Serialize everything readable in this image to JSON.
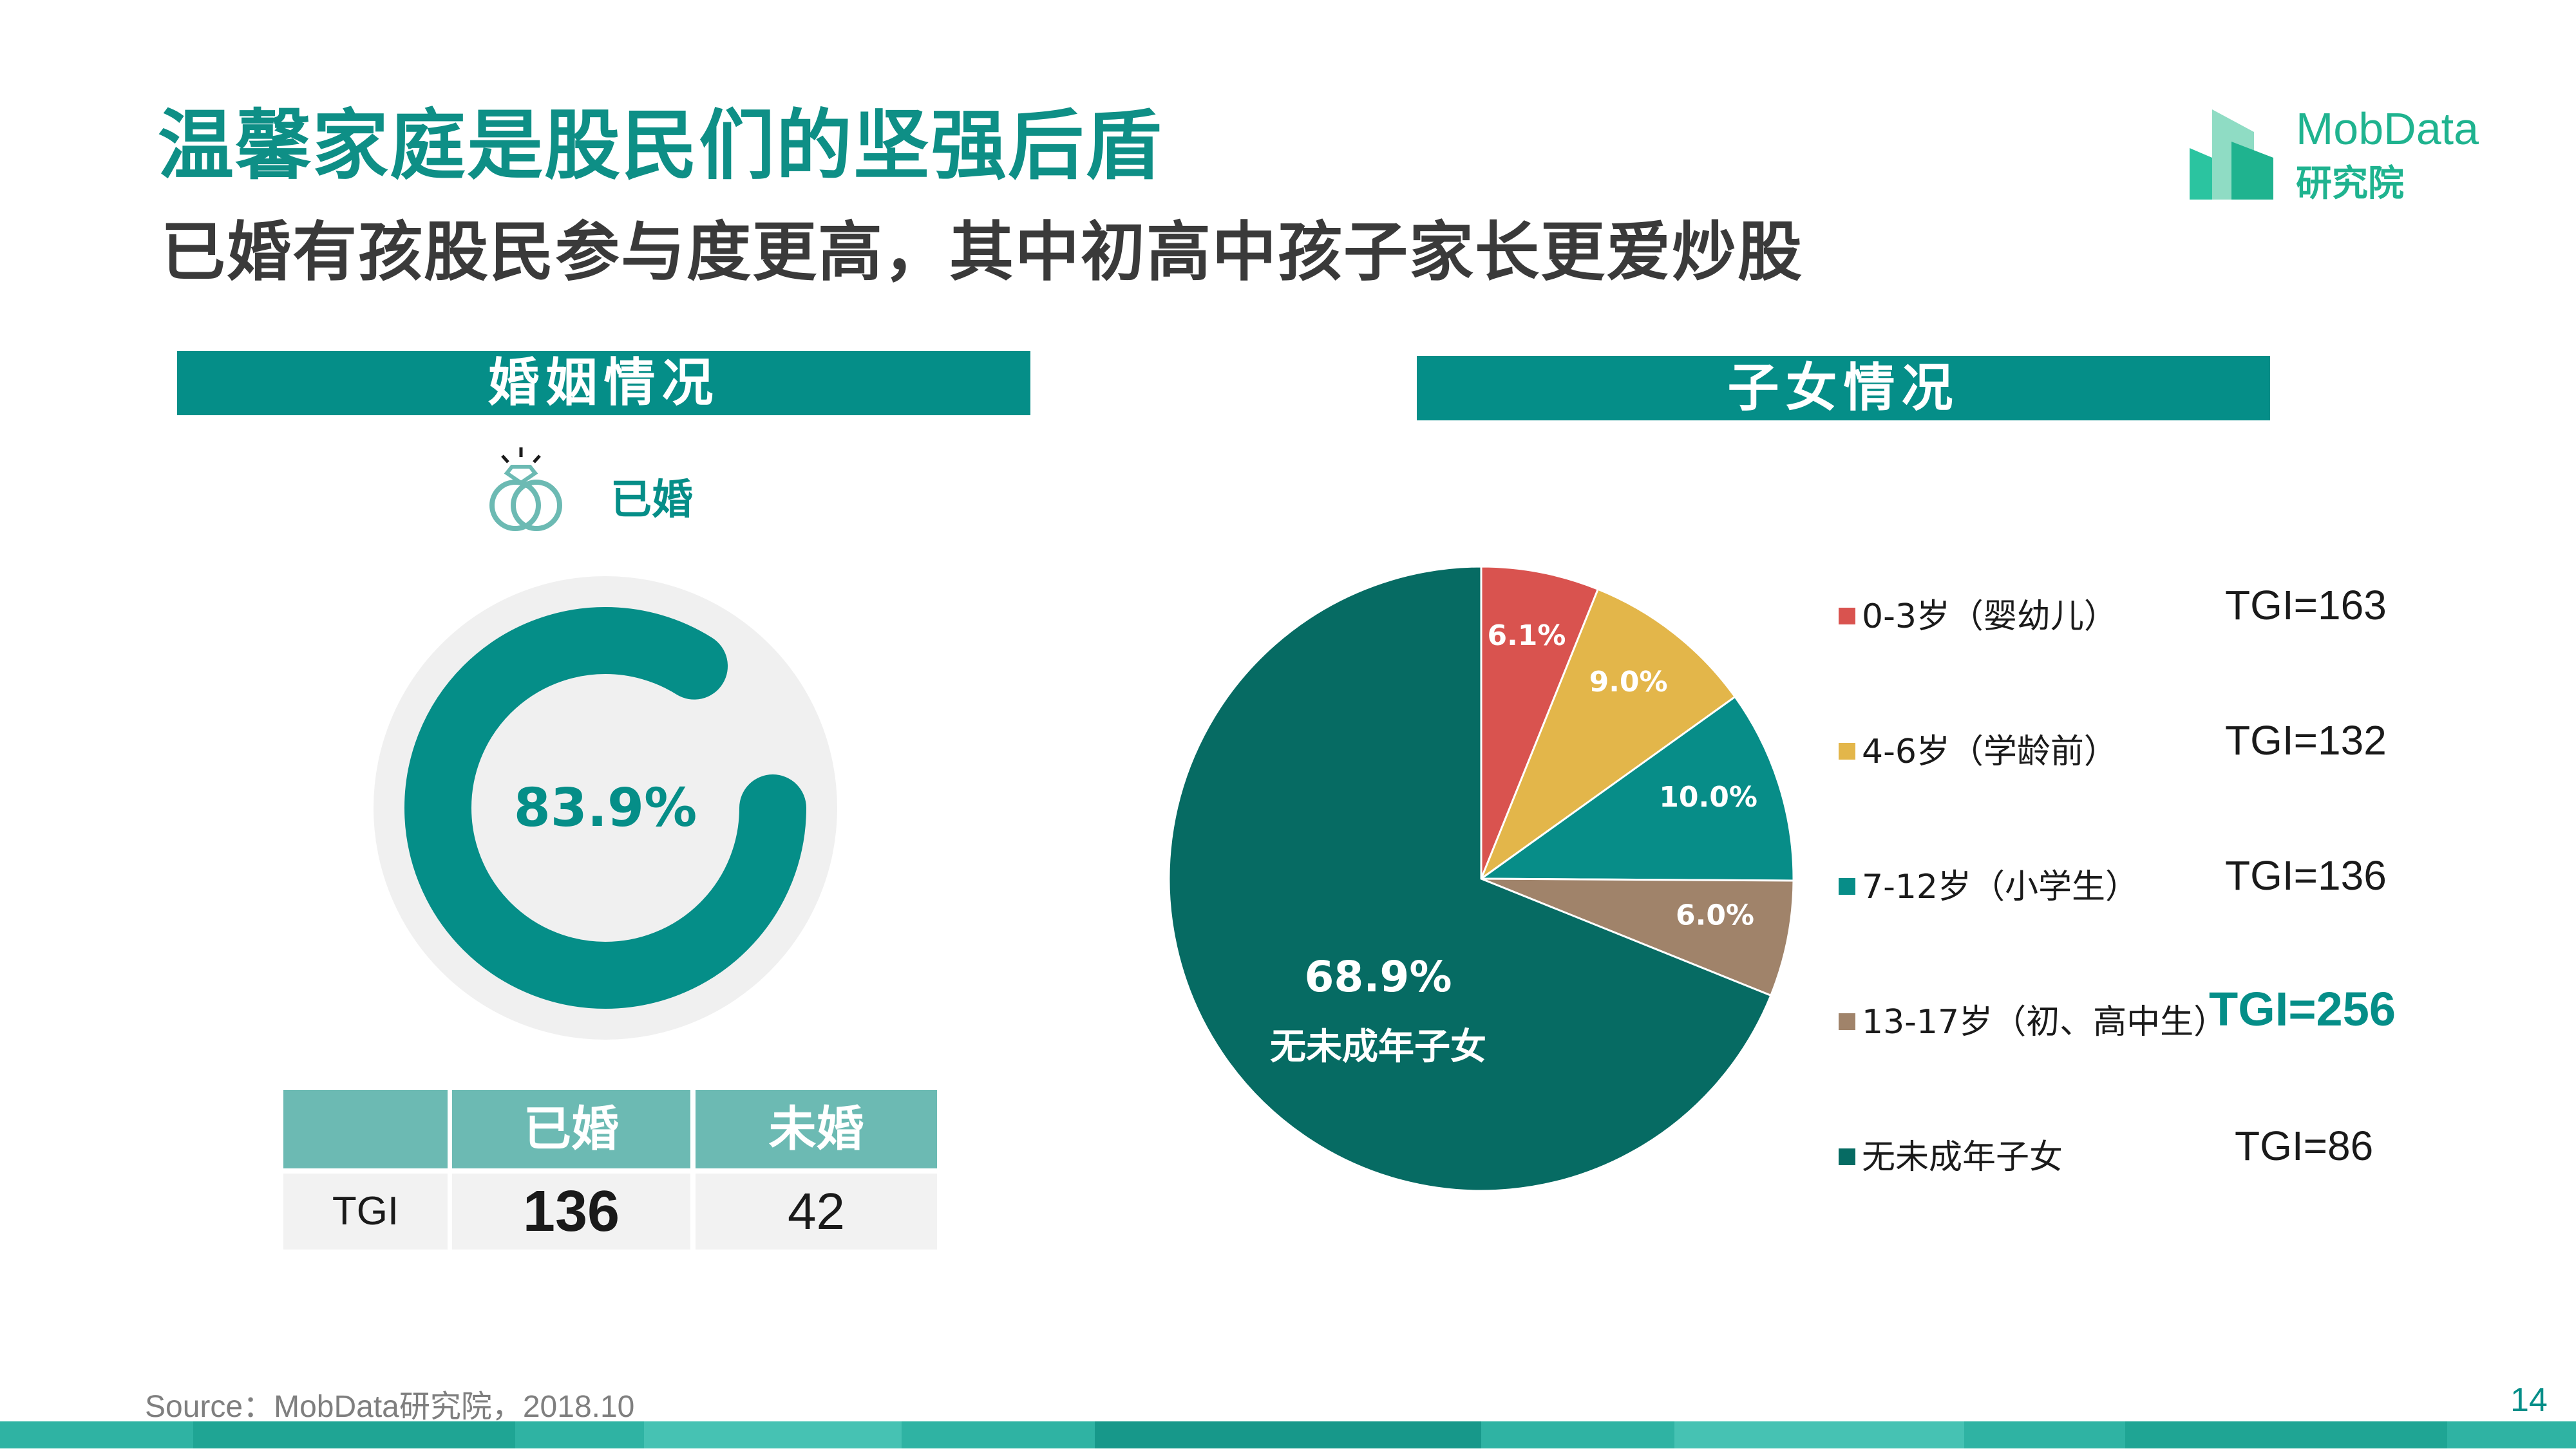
{
  "title": "温馨家庭是股民们的坚强后盾",
  "subtitle": "已婚有孩股民参与度更高，其中初高中孩子家长更爱炒股",
  "logo": {
    "line1": "MobData",
    "line2": "研究院"
  },
  "marriage": {
    "header": "婚姻情况",
    "icon_label": "已婚",
    "center_value": "83.9%",
    "table": {
      "columns": [
        "",
        "已婚",
        "未婚"
      ],
      "row_label": "TGI",
      "married_tgi": "136",
      "unmarried_tgi": "42"
    }
  },
  "children": {
    "header": "子女情况",
    "legend": [
      {
        "label": "0-3岁（婴幼儿）",
        "tgi": "TGI=163",
        "color": "#d9534f"
      },
      {
        "label": "4-6岁（学龄前）",
        "tgi": "TGI=132",
        "color": "#e3b64a"
      },
      {
        "label": "7-12岁（小学生）",
        "tgi": "TGI=136",
        "color": "#078d88"
      },
      {
        "label": "13-17岁（初、高中生）",
        "tgi": "TGI=256",
        "color": "#a0836a"
      },
      {
        "label": "无未成年子女",
        "tgi": "TGI=86",
        "color": "#066b63"
      }
    ],
    "big_slice_label": "无未成年子女"
  },
  "chart_data": [
    {
      "type": "pie",
      "subtype": "donut-progress",
      "title": "婚姻情况",
      "categories": [
        "已婚"
      ],
      "values": [
        83.9
      ],
      "colors": {
        "fill": "#058e88",
        "track": "#f0f0f0"
      }
    },
    {
      "type": "pie",
      "title": "子女情况",
      "categories": [
        "0-3岁（婴幼儿）",
        "4-6岁（学龄前）",
        "7-12岁（小学生）",
        "13-17岁（初、高中生）",
        "无未成年子女"
      ],
      "values": [
        6.1,
        9.0,
        10.0,
        6.0,
        68.9
      ],
      "labels": [
        "6.1%",
        "9.0%",
        "10.0%",
        "6.0%",
        "68.9%"
      ],
      "colors": [
        "#d9534f",
        "#e3b64a",
        "#078d88",
        "#a0836a",
        "#066b63"
      ],
      "legend": "right"
    }
  ],
  "source": "Source：MobData研究院，2018.10",
  "page_number": "14",
  "colors": {
    "accent": "#058e88",
    "title": "#0e8f86"
  }
}
